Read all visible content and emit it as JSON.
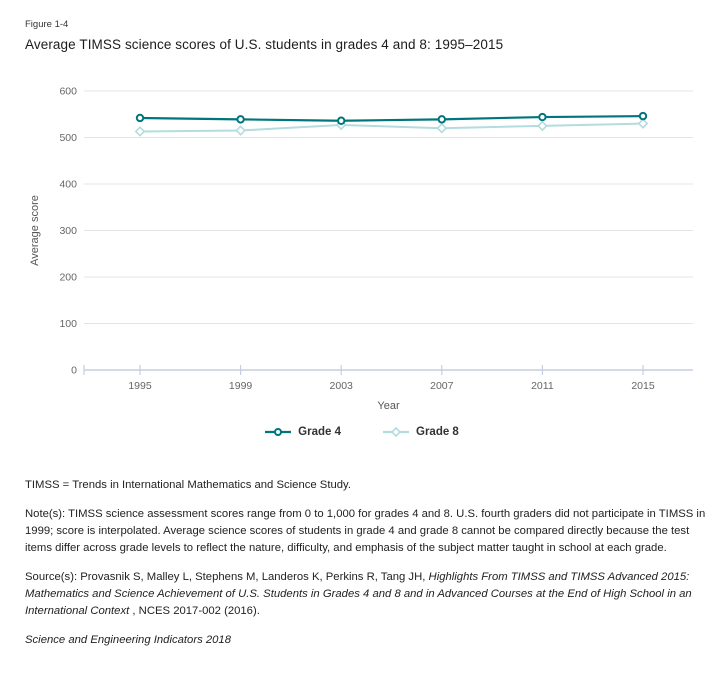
{
  "figure_label": "Figure 1-4",
  "title": "Average TIMSS science scores of U.S. students in grades 4 and 8: 1995–2015",
  "chart_data": {
    "type": "line",
    "x": [
      "1995",
      "1999",
      "2003",
      "2007",
      "2011",
      "2015"
    ],
    "series": [
      {
        "name": "Grade 4",
        "values": [
          542,
          539,
          536,
          539,
          544,
          546
        ],
        "color": "#00757c",
        "marker": "circle"
      },
      {
        "name": "Grade 8",
        "values": [
          513,
          515,
          527,
          520,
          525,
          530
        ],
        "color": "#b3dcde",
        "marker": "diamond"
      }
    ],
    "xlabel": "Year",
    "ylabel": "Average score",
    "ylim": [
      0,
      600
    ],
    "yticks": [
      0,
      100,
      200,
      300,
      400,
      500,
      600
    ],
    "grid": true,
    "legend_position": "bottom-center"
  },
  "colors": {
    "grid": "#e4e4e4",
    "axis": "#c5cfe1",
    "tick_label": "#666666",
    "axis_title": "#555555",
    "legend_text": "#333333"
  },
  "footnotes": {
    "abbreviation": "TIMSS = Trends in International Mathematics and Science Study.",
    "note": "Note(s): TIMSS science assessment scores range from 0 to 1,000 for grades 4 and 8. U.S. fourth graders did not participate in TIMSS in 1999; score is interpolated. Average science scores of students in grade 4 and grade 8 cannot be compared directly because the test items differ across grade levels to reflect the nature, difficulty, and emphasis of the subject matter taught in school at each grade.",
    "source_prefix": "Source(s): Provasnik S, Malley L, Stephens M, Landeros K, Perkins R, Tang JH, ",
    "source_italic": "Highlights From TIMSS and TIMSS Advanced 2015: Mathematics and Science Achievement of U.S. Students in Grades 4 and 8 and in Advanced Courses at the End of High School in an International Context",
    "source_suffix": " , NCES 2017-002 (2016).",
    "publication": "Science and Engineering Indicators 2018"
  }
}
